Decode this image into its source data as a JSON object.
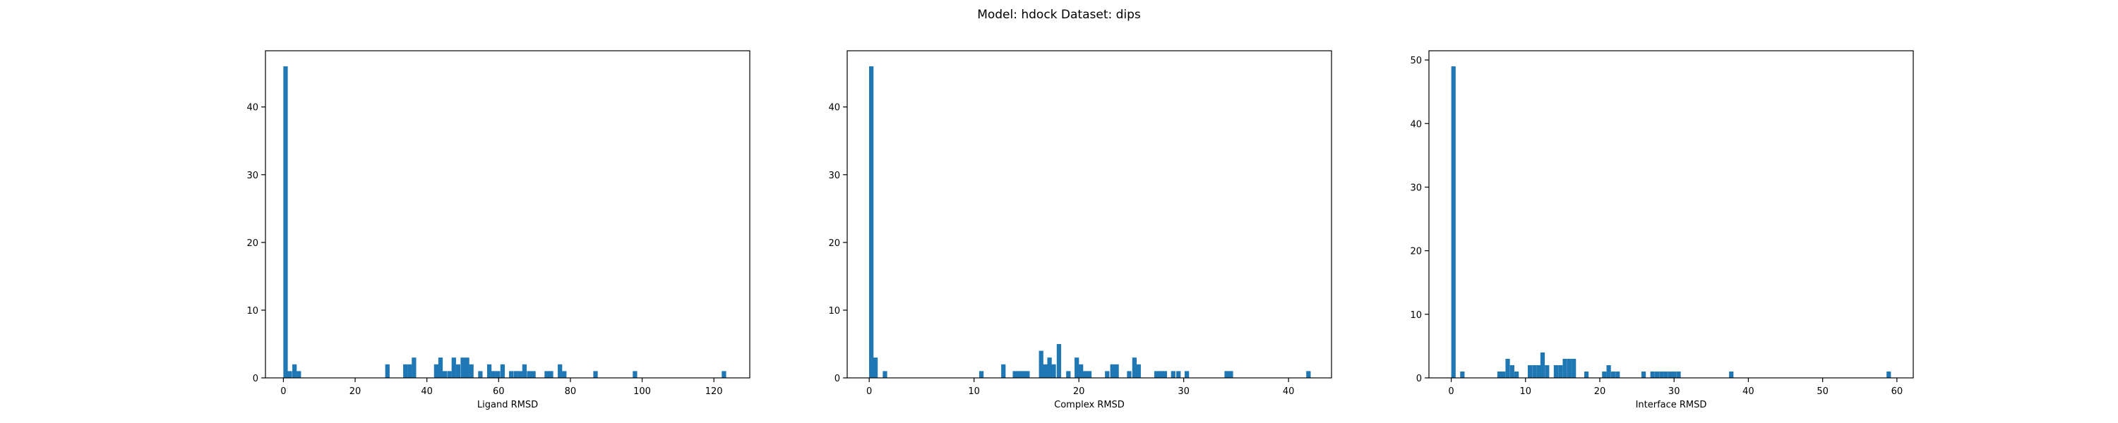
{
  "figure": {
    "suptitle": "Model: hdock Dataset: dips",
    "bar_color": "#1f77b4"
  },
  "chart_data": [
    {
      "type": "bar",
      "histogram": true,
      "title": "",
      "xlabel": "Ligand RMSD",
      "ylabel": "",
      "xlim": [
        -5,
        130
      ],
      "ylim": [
        0,
        48.3
      ],
      "xticks": [
        0,
        20,
        40,
        60,
        80,
        100,
        120
      ],
      "yticks": [
        0,
        10,
        20,
        30,
        40
      ],
      "bin_width": 1.23,
      "bins": [
        {
          "x": 0.6,
          "count": 46
        },
        {
          "x": 1.8,
          "count": 1
        },
        {
          "x": 3.1,
          "count": 2
        },
        {
          "x": 4.3,
          "count": 1
        },
        {
          "x": 29.0,
          "count": 2
        },
        {
          "x": 34.0,
          "count": 2
        },
        {
          "x": 35.2,
          "count": 2
        },
        {
          "x": 36.4,
          "count": 3
        },
        {
          "x": 42.6,
          "count": 2
        },
        {
          "x": 43.8,
          "count": 3
        },
        {
          "x": 45.0,
          "count": 1
        },
        {
          "x": 46.3,
          "count": 1
        },
        {
          "x": 47.5,
          "count": 3
        },
        {
          "x": 48.7,
          "count": 2
        },
        {
          "x": 50.0,
          "count": 3
        },
        {
          "x": 51.2,
          "count": 3
        },
        {
          "x": 52.4,
          "count": 2
        },
        {
          "x": 54.9,
          "count": 1
        },
        {
          "x": 57.4,
          "count": 2
        },
        {
          "x": 58.6,
          "count": 1
        },
        {
          "x": 59.8,
          "count": 1
        },
        {
          "x": 61.1,
          "count": 2
        },
        {
          "x": 63.5,
          "count": 1
        },
        {
          "x": 64.8,
          "count": 1
        },
        {
          "x": 66.0,
          "count": 1
        },
        {
          "x": 67.2,
          "count": 2
        },
        {
          "x": 68.5,
          "count": 1
        },
        {
          "x": 69.7,
          "count": 1
        },
        {
          "x": 73.4,
          "count": 1
        },
        {
          "x": 74.6,
          "count": 1
        },
        {
          "x": 77.1,
          "count": 2
        },
        {
          "x": 78.3,
          "count": 1
        },
        {
          "x": 87.0,
          "count": 1
        },
        {
          "x": 98.0,
          "count": 1
        },
        {
          "x": 122.8,
          "count": 1
        }
      ]
    },
    {
      "type": "bar",
      "histogram": true,
      "title": "",
      "xlabel": "Complex RMSD",
      "ylabel": "",
      "xlim": [
        -2.1,
        44.1
      ],
      "ylim": [
        0,
        48.3
      ],
      "xticks": [
        0,
        10,
        20,
        30,
        40
      ],
      "yticks": [
        0,
        10,
        20,
        30,
        40
      ],
      "bin_width": 0.42,
      "bins": [
        {
          "x": 0.2,
          "count": 46
        },
        {
          "x": 0.6,
          "count": 3
        },
        {
          "x": 1.5,
          "count": 1
        },
        {
          "x": 10.7,
          "count": 1
        },
        {
          "x": 12.8,
          "count": 2
        },
        {
          "x": 13.9,
          "count": 1
        },
        {
          "x": 14.3,
          "count": 1
        },
        {
          "x": 14.7,
          "count": 1
        },
        {
          "x": 15.1,
          "count": 1
        },
        {
          "x": 16.4,
          "count": 4
        },
        {
          "x": 16.8,
          "count": 2
        },
        {
          "x": 17.2,
          "count": 3
        },
        {
          "x": 17.6,
          "count": 2
        },
        {
          "x": 18.1,
          "count": 5
        },
        {
          "x": 19.0,
          "count": 1
        },
        {
          "x": 19.8,
          "count": 3
        },
        {
          "x": 20.2,
          "count": 2
        },
        {
          "x": 20.6,
          "count": 1
        },
        {
          "x": 21.0,
          "count": 1
        },
        {
          "x": 22.7,
          "count": 1
        },
        {
          "x": 23.2,
          "count": 2
        },
        {
          "x": 23.6,
          "count": 2
        },
        {
          "x": 24.8,
          "count": 1
        },
        {
          "x": 25.3,
          "count": 3
        },
        {
          "x": 25.7,
          "count": 2
        },
        {
          "x": 27.4,
          "count": 1
        },
        {
          "x": 27.8,
          "count": 1
        },
        {
          "x": 28.2,
          "count": 1
        },
        {
          "x": 29.0,
          "count": 1
        },
        {
          "x": 29.5,
          "count": 1
        },
        {
          "x": 30.3,
          "count": 1
        },
        {
          "x": 34.1,
          "count": 1
        },
        {
          "x": 34.5,
          "count": 1
        },
        {
          "x": 41.9,
          "count": 1
        }
      ]
    },
    {
      "type": "bar",
      "histogram": true,
      "title": "",
      "xlabel": "Interface RMSD",
      "ylabel": "",
      "xlim": [
        -3,
        62.2
      ],
      "ylim": [
        0,
        51.45
      ],
      "xticks": [
        0,
        10,
        20,
        30,
        40,
        50,
        60
      ],
      "yticks": [
        0,
        10,
        20,
        30,
        40,
        50
      ],
      "bin_width": 0.59,
      "bins": [
        {
          "x": 0.3,
          "count": 49
        },
        {
          "x": 1.5,
          "count": 1
        },
        {
          "x": 6.5,
          "count": 1
        },
        {
          "x": 7.0,
          "count": 1
        },
        {
          "x": 7.6,
          "count": 3
        },
        {
          "x": 8.2,
          "count": 2
        },
        {
          "x": 8.8,
          "count": 1
        },
        {
          "x": 10.6,
          "count": 2
        },
        {
          "x": 11.2,
          "count": 2
        },
        {
          "x": 11.8,
          "count": 2
        },
        {
          "x": 12.3,
          "count": 4
        },
        {
          "x": 12.9,
          "count": 2
        },
        {
          "x": 14.1,
          "count": 2
        },
        {
          "x": 14.7,
          "count": 2
        },
        {
          "x": 15.3,
          "count": 3
        },
        {
          "x": 15.9,
          "count": 3
        },
        {
          "x": 16.5,
          "count": 3
        },
        {
          "x": 18.2,
          "count": 1
        },
        {
          "x": 20.6,
          "count": 1
        },
        {
          "x": 21.2,
          "count": 2
        },
        {
          "x": 21.8,
          "count": 1
        },
        {
          "x": 22.4,
          "count": 1
        },
        {
          "x": 25.9,
          "count": 1
        },
        {
          "x": 27.1,
          "count": 1
        },
        {
          "x": 27.7,
          "count": 1
        },
        {
          "x": 28.3,
          "count": 1
        },
        {
          "x": 28.9,
          "count": 1
        },
        {
          "x": 29.5,
          "count": 1
        },
        {
          "x": 30.0,
          "count": 1
        },
        {
          "x": 30.6,
          "count": 1
        },
        {
          "x": 37.7,
          "count": 1
        },
        {
          "x": 58.9,
          "count": 1
        }
      ]
    }
  ]
}
